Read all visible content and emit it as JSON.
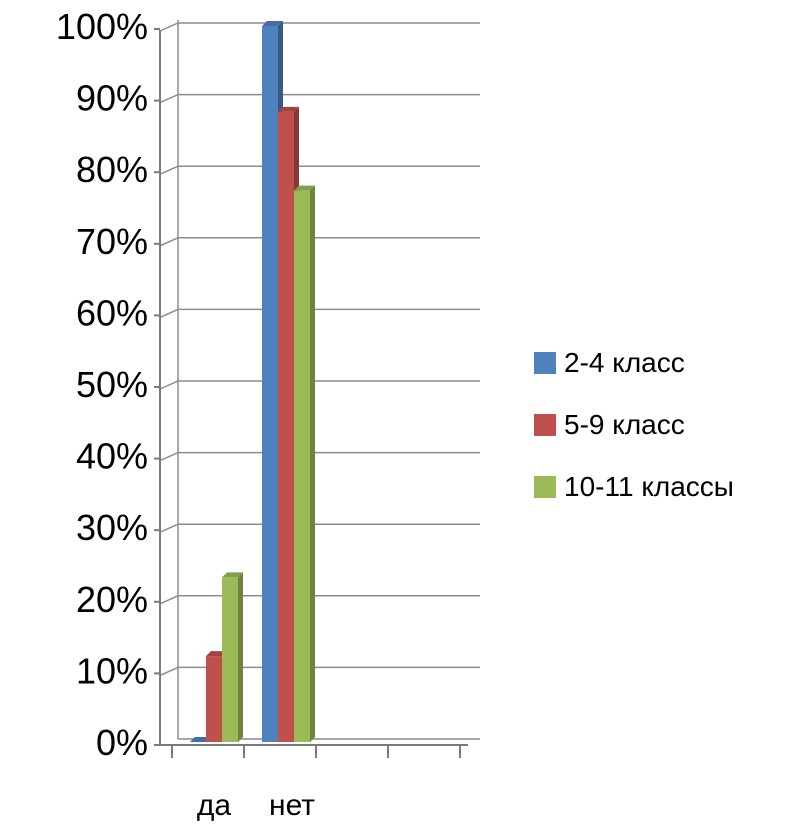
{
  "chart_data": {
    "type": "bar",
    "categories": [
      "да",
      "нет"
    ],
    "series": [
      {
        "name": "2-4 класс",
        "values": [
          0,
          100
        ],
        "color": "#4f81bd"
      },
      {
        "name": "5-9 класс",
        "values": [
          12,
          88
        ],
        "color": "#c0504d"
      },
      {
        "name": "10-11 классы",
        "values": [
          23,
          77
        ],
        "color": "#9bbb59"
      }
    ],
    "title": "",
    "xlabel": "",
    "ylabel": "",
    "ylim": [
      0,
      100
    ],
    "yticks": [
      "0%",
      "10%",
      "20%",
      "30%",
      "40%",
      "50%",
      "60%",
      "70%",
      "80%",
      "90%",
      "100%"
    ],
    "grid": true,
    "legend_position": "right",
    "three_d": true
  }
}
